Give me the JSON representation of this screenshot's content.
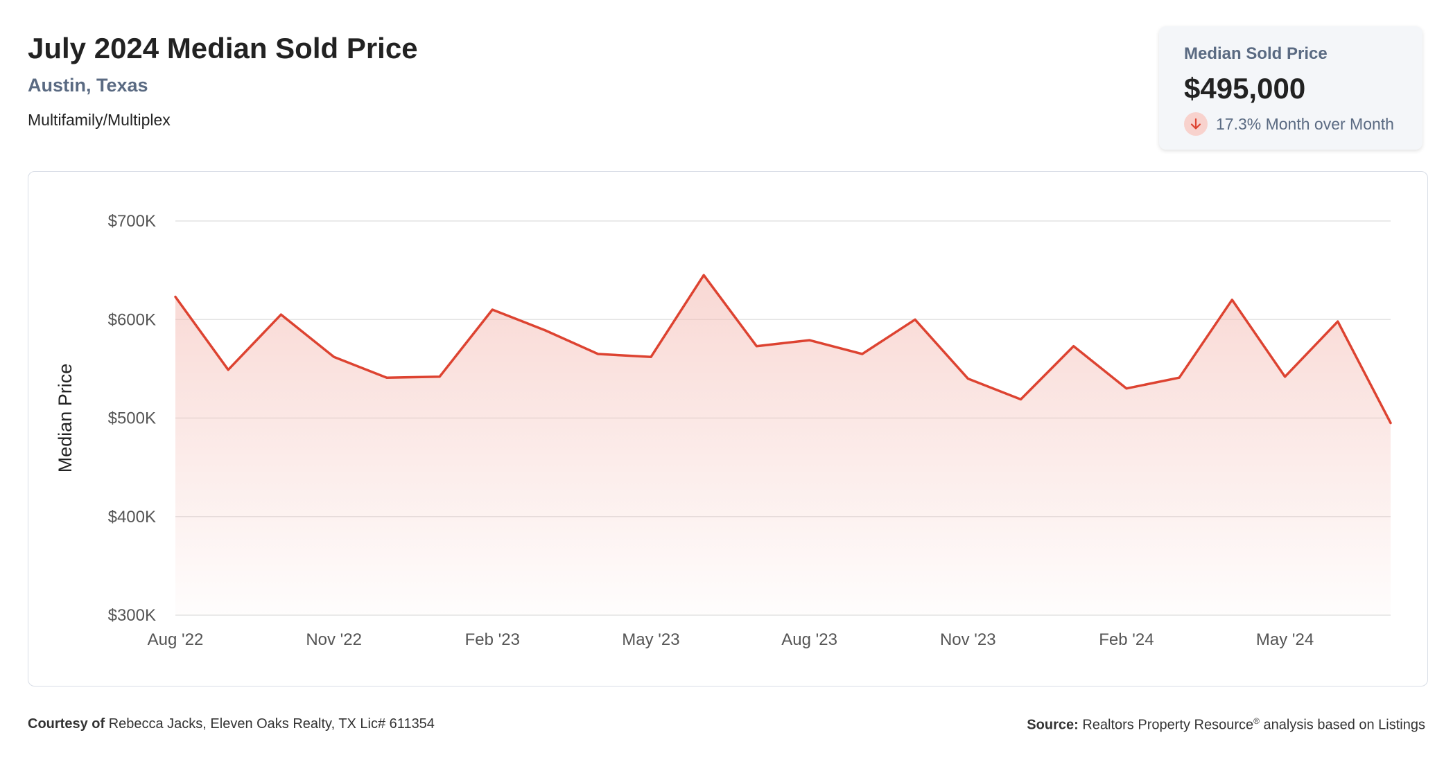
{
  "header": {
    "title": "July 2024 Median Sold Price",
    "location": "Austin, Texas",
    "category": "Multifamily/Multiplex"
  },
  "stat_card": {
    "label": "Median Sold Price",
    "value": "$495,000",
    "change_icon": "arrow-down-icon",
    "change_text": "17.3% Month over Month"
  },
  "footer": {
    "courtesy_label": "Courtesy of",
    "courtesy_text": "Rebecca Jacks, Eleven Oaks Realty, TX Lic# 611354",
    "source_label": "Source:",
    "source_text": "Realtors Property Resource",
    "source_mark": "®",
    "source_suffix": "analysis based on Listings"
  },
  "colors": {
    "line": "#dd4331",
    "fill": "#f3b8b0",
    "grid": "#e3e3e3",
    "axis_text": "#555555",
    "accent_text": "#5a6a82"
  },
  "chart_data": {
    "type": "area",
    "ylabel": "Median Price",
    "ylim": [
      300000,
      700000
    ],
    "yticks": [
      300000,
      400000,
      500000,
      600000,
      700000
    ],
    "ytick_labels": [
      "$300K",
      "$400K",
      "$500K",
      "$600K",
      "$700K"
    ],
    "x_tick_index": [
      0,
      3,
      6,
      9,
      12,
      15,
      18,
      21
    ],
    "x_tick_labels": [
      "Aug '22",
      "Nov '22",
      "Feb '23",
      "May '23",
      "Aug '23",
      "Nov '23",
      "Feb '24",
      "May '24"
    ],
    "grid": true,
    "legend": "none",
    "series": [
      {
        "x": [
          "Aug 2022",
          "Sep 2022",
          "Oct 2022",
          "Nov 2022",
          "Dec 2022",
          "Jan 2023",
          "Feb 2023",
          "Mar 2023",
          "Apr 2023",
          "May 2023",
          "Jun 2023",
          "Jul 2023",
          "Aug 2023",
          "Sep 2023",
          "Oct 2023",
          "Nov 2023",
          "Dec 2023",
          "Jan 2024",
          "Feb 2024",
          "Mar 2024",
          "Apr 2024",
          "May 2024",
          "Jun 2024",
          "Jul 2024"
        ],
        "values": [
          623000,
          549000,
          605000,
          562000,
          541000,
          542000,
          610000,
          589000,
          565000,
          562000,
          645000,
          573000,
          579000,
          565000,
          600000,
          540000,
          519000,
          573000,
          530000,
          541000,
          620000,
          542000,
          598000,
          495000
        ]
      }
    ]
  }
}
